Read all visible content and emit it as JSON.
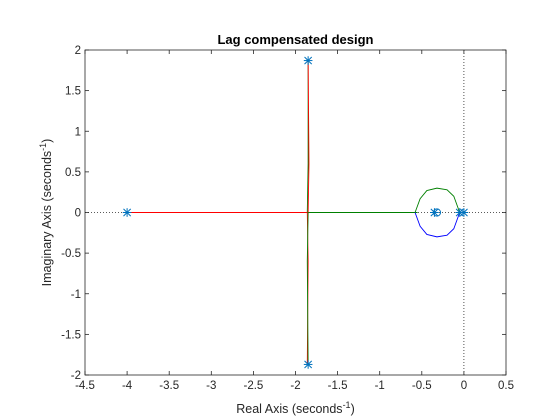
{
  "chart_data": {
    "type": "line",
    "subtype": "root-locus",
    "title": "Lag compensated design",
    "xlabel": {
      "base": "Real Axis (seconds",
      "sup": "-1",
      "close": ")"
    },
    "ylabel": {
      "base": "Imaginary Axis (seconds",
      "sup": "-1",
      "close": ")"
    },
    "xlim": [
      -4.5,
      0.5
    ],
    "ylim": [
      -2,
      2
    ],
    "xticks": [
      -4.5,
      -4,
      -3.5,
      -3,
      -2.5,
      -2,
      -1.5,
      -1,
      -0.5,
      0,
      0.5
    ],
    "xticklabels": [
      "-4.5",
      "-4",
      "-3.5",
      "-3",
      "-2.5",
      "-2",
      "-1.5",
      "-1",
      "-0.5",
      "0",
      "0.5"
    ],
    "yticks": [
      -2,
      -1.5,
      -1,
      -0.5,
      0,
      0.5,
      1,
      1.5,
      2
    ],
    "yticklabels": [
      "-2",
      "-1.5",
      "-1",
      "-0.5",
      "0",
      "0.5",
      "1",
      "1.5",
      "2"
    ],
    "grid": false,
    "reference_lines": {
      "real_axis": true,
      "imag_axis": true,
      "style": "dotted"
    },
    "colors": {
      "blue": "#0000ff",
      "green": "#008000",
      "red": "#ff0000",
      "marker": "#0072bd",
      "axis": "#262626"
    },
    "series": [
      {
        "color": "green",
        "x": [
          -1.85,
          -1.85,
          -1.86
        ],
        "y": [
          1.87,
          0.6,
          0
        ]
      },
      {
        "color": "red",
        "x": [
          -1.86,
          -1.85,
          -1.86
        ],
        "y": [
          0,
          -0.6,
          -1.87
        ]
      },
      {
        "color": "red",
        "x": [
          -4.0,
          -1.86
        ],
        "y": [
          0,
          0
        ]
      },
      {
        "color": "green",
        "x": [
          -1.86,
          -0.55
        ],
        "y": [
          0,
          0
        ]
      },
      {
        "color": "green",
        "x": [
          -0.05,
          -0.12,
          -0.2,
          -0.32,
          -0.44,
          -0.52,
          -0.58
        ],
        "y": [
          0,
          0.2,
          0.28,
          0.3,
          0.27,
          0.17,
          0
        ]
      },
      {
        "color": "blue",
        "x": [
          -0.58,
          -0.52,
          -0.44,
          -0.32,
          -0.2,
          -0.12,
          -0.05
        ],
        "y": [
          0,
          -0.17,
          -0.27,
          -0.3,
          -0.28,
          -0.2,
          0
        ]
      },
      {
        "color": "red",
        "x": [
          -1.85,
          -1.84,
          -1.85
        ],
        "y": [
          1.87,
          0.6,
          0
        ]
      },
      {
        "color": "green",
        "x": [
          -1.85,
          -1.86,
          -1.85
        ],
        "y": [
          0,
          -0.6,
          -1.87
        ]
      }
    ],
    "poles": [
      {
        "x": -4.0,
        "y": 0
      },
      {
        "x": -1.85,
        "y": 1.87
      },
      {
        "x": -1.85,
        "y": -1.87
      },
      {
        "x": -0.35,
        "y": 0
      },
      {
        "x": -0.05,
        "y": 0
      },
      {
        "x": 0.0,
        "y": 0
      }
    ],
    "zeros": [
      {
        "x": -0.32,
        "y": 0
      }
    ]
  }
}
